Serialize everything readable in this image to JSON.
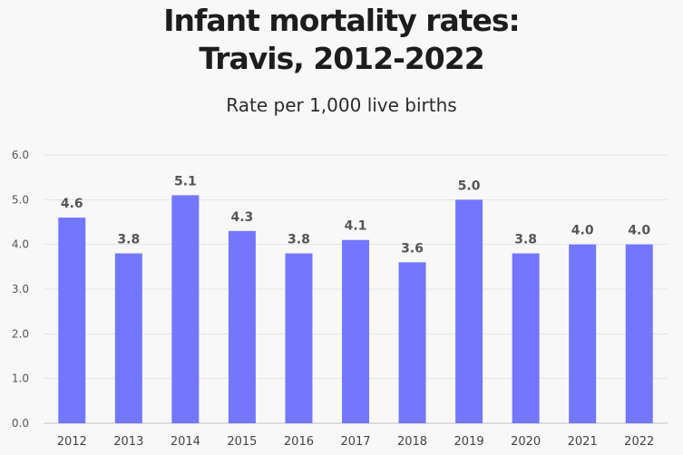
{
  "chart_data": {
    "type": "bar",
    "title_line1": "Infant mortality rates:",
    "title_line2": "Travis, 2012-2022",
    "subtitle": "Rate per 1,000 live births",
    "categories": [
      "2012",
      "2013",
      "2014",
      "2015",
      "2016",
      "2017",
      "2018",
      "2019",
      "2020",
      "2021",
      "2022"
    ],
    "values": [
      4.6,
      3.8,
      5.1,
      4.3,
      3.8,
      4.1,
      3.6,
      5.0,
      3.8,
      4.0,
      4.0
    ],
    "value_labels": [
      "4.6",
      "3.8",
      "5.1",
      "4.3",
      "3.8",
      "4.1",
      "3.6",
      "5.0",
      "3.8",
      "4.0",
      "4.0"
    ],
    "ylim": [
      0,
      6
    ],
    "yticks": [
      "0.0",
      "1.0",
      "2.0",
      "3.0",
      "4.0",
      "5.0",
      "6.0"
    ],
    "bar_color": "#7377ff",
    "grid": true
  }
}
